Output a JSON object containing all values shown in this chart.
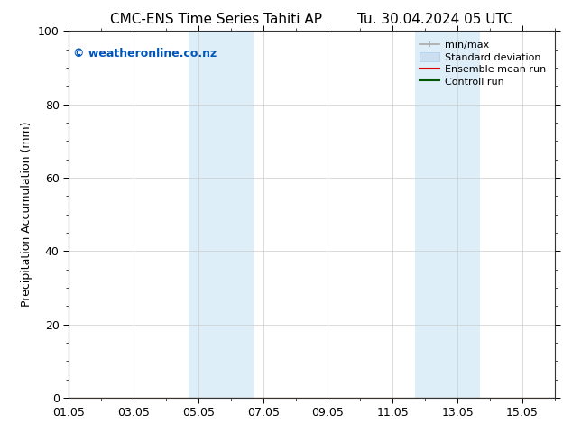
{
  "title_left": "CMC-ENS Time Series Tahiti AP",
  "title_right": "Tu. 30.04.2024 05 UTC",
  "ylabel": "Precipitation Accumulation (mm)",
  "ylim": [
    0,
    100
  ],
  "yticks": [
    0,
    20,
    40,
    60,
    80,
    100
  ],
  "xlim": [
    0,
    15
  ],
  "xtick_labels": [
    "01.05",
    "03.05",
    "05.05",
    "07.05",
    "09.05",
    "11.05",
    "13.05",
    "15.05"
  ],
  "xtick_positions": [
    0,
    2,
    4,
    6,
    8,
    10,
    12,
    14
  ],
  "shaded_bands": [
    {
      "x_start": 3.7,
      "x_end": 5.7
    },
    {
      "x_start": 10.7,
      "x_end": 12.7
    }
  ],
  "shade_color": "#ddeef8",
  "background_color": "#ffffff",
  "grid_color": "#cccccc",
  "watermark_text": "© weatheronline.co.nz",
  "watermark_color": "#0055bb",
  "legend_items": [
    {
      "label": "min/max",
      "color": "#aaaaaa"
    },
    {
      "label": "Standard deviation",
      "color": "#ccdff0"
    },
    {
      "label": "Ensemble mean run",
      "color": "#dd0000"
    },
    {
      "label": "Controll run",
      "color": "#005500"
    }
  ],
  "title_fontsize": 11,
  "label_fontsize": 9,
  "tick_fontsize": 9,
  "legend_fontsize": 8,
  "watermark_fontsize": 9
}
